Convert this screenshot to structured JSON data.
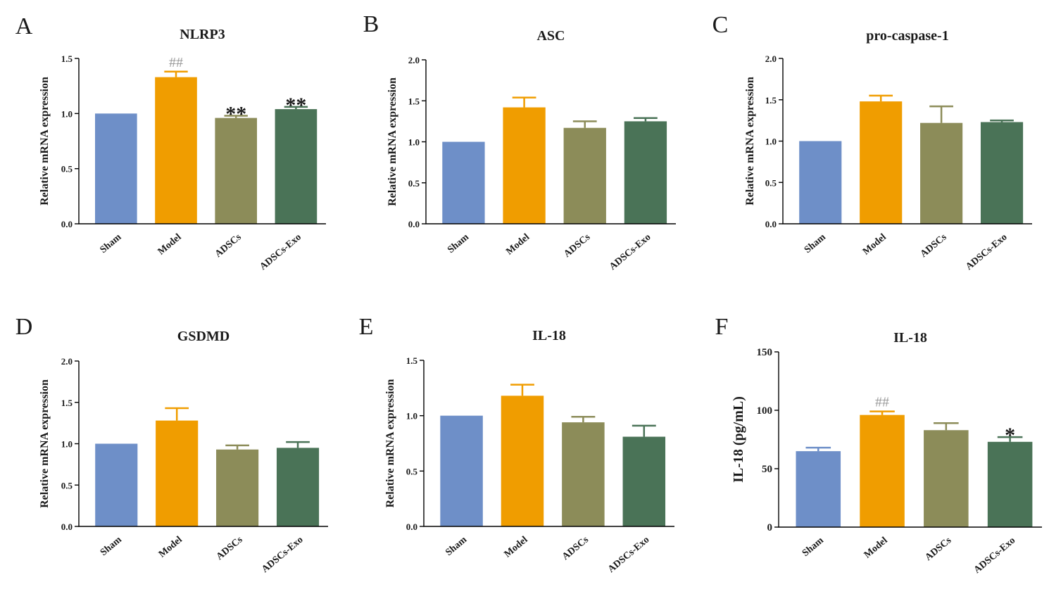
{
  "colors": {
    "sham": "#6e8fc8",
    "model": "#f09d00",
    "adscs": "#8c8c59",
    "adscs_exo": "#4a7357",
    "axis": "#000000",
    "sig_hash": "#999999"
  },
  "chart_data": [
    {
      "id": "A",
      "type": "bar",
      "letter": "A",
      "title": "NLRP3",
      "ylabel": "Relative mRNA expression",
      "categories": [
        "Sham",
        "Model",
        "ADSCs",
        "ADSCs-Exo"
      ],
      "values": [
        1.0,
        1.33,
        0.96,
        1.04
      ],
      "errors": [
        0.0,
        0.05,
        0.02,
        0.02
      ],
      "ylim": [
        0,
        1.5
      ],
      "yticks": [
        0.0,
        0.5,
        1.0,
        1.5
      ],
      "ytick_labels": [
        "0.0",
        "0.5",
        "1.0",
        "1.5"
      ],
      "annotations": [
        "",
        "##",
        "**",
        "**"
      ]
    },
    {
      "id": "B",
      "type": "bar",
      "letter": "B",
      "title": "ASC",
      "ylabel": "Relative mRNA expression",
      "categories": [
        "Sham",
        "Model",
        "ADSCs",
        "ADSCs-Exo"
      ],
      "values": [
        1.0,
        1.42,
        1.17,
        1.25
      ],
      "errors": [
        0.0,
        0.12,
        0.08,
        0.04
      ],
      "ylim": [
        0,
        2.0
      ],
      "yticks": [
        0.0,
        0.5,
        1.0,
        1.5,
        2.0
      ],
      "ytick_labels": [
        "0.0",
        "0.5",
        "1.0",
        "1.5",
        "2.0"
      ],
      "annotations": [
        "",
        "",
        "",
        ""
      ]
    },
    {
      "id": "C",
      "type": "bar",
      "letter": "C",
      "title": "pro-caspase-1",
      "ylabel": "Relative mRNA expression",
      "categories": [
        "Sham",
        "Model",
        "ADSCs",
        "ADSCs-Exo"
      ],
      "values": [
        1.0,
        1.48,
        1.22,
        1.23
      ],
      "errors": [
        0.0,
        0.07,
        0.2,
        0.02
      ],
      "ylim": [
        0,
        2.0
      ],
      "yticks": [
        0.0,
        0.5,
        1.0,
        1.5,
        2.0
      ],
      "ytick_labels": [
        "0.0",
        "0.5",
        "1.0",
        "1.5",
        "2.0"
      ],
      "annotations": [
        "",
        "",
        "",
        ""
      ]
    },
    {
      "id": "D",
      "type": "bar",
      "letter": "D",
      "title": "GSDMD",
      "ylabel": "Relative mRNA expression",
      "categories": [
        "Sham",
        "Model",
        "ADSCs",
        "ADSCs-Exo"
      ],
      "values": [
        1.0,
        1.28,
        0.93,
        0.95
      ],
      "errors": [
        0.0,
        0.15,
        0.05,
        0.07
      ],
      "ylim": [
        0,
        2.0
      ],
      "yticks": [
        0.0,
        0.5,
        1.0,
        1.5,
        2.0
      ],
      "ytick_labels": [
        "0.0",
        "0.5",
        "1.0",
        "1.5",
        "2.0"
      ],
      "annotations": [
        "",
        "",
        "",
        ""
      ]
    },
    {
      "id": "E",
      "type": "bar",
      "letter": "E",
      "title": "IL-18",
      "ylabel": "Relative mRNA expression",
      "categories": [
        "Sham",
        "Model",
        "ADSCs",
        "ADSCs-Exo"
      ],
      "values": [
        1.0,
        1.18,
        0.94,
        0.81
      ],
      "errors": [
        0.0,
        0.1,
        0.05,
        0.1
      ],
      "ylim": [
        0,
        1.5
      ],
      "yticks": [
        0.0,
        0.5,
        1.0,
        1.5
      ],
      "ytick_labels": [
        "0.0",
        "0.5",
        "1.0",
        "1.5"
      ],
      "annotations": [
        "",
        "",
        "",
        ""
      ]
    },
    {
      "id": "F",
      "type": "bar",
      "letter": "F",
      "title": "IL-18",
      "ylabel": "IL-18 (pg/mL)",
      "categories": [
        "Sham",
        "Model",
        "ADSCs",
        "ADSCs-Exo"
      ],
      "values": [
        65,
        96,
        83,
        73
      ],
      "errors": [
        3,
        3,
        6,
        4
      ],
      "ylim": [
        0,
        150
      ],
      "yticks": [
        0,
        50,
        100,
        150
      ],
      "ytick_labels": [
        "0",
        "50",
        "100",
        "150"
      ],
      "annotations": [
        "",
        "##",
        "",
        "*"
      ]
    }
  ]
}
